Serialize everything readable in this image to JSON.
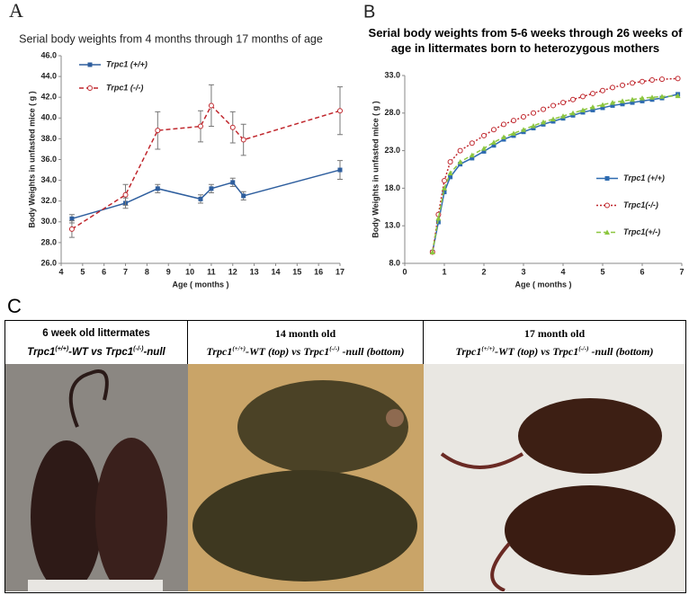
{
  "chart_data": [
    {
      "type": "line",
      "panel_label": "A",
      "title": "Serial body weights from 4 months through 17 months of age",
      "xlabel": "Age ( months )",
      "ylabel": "Body Weights in unfasted mice ( g )",
      "x": [
        4.5,
        7,
        8.5,
        10.5,
        11,
        12,
        12.5,
        17
      ],
      "series": [
        {
          "name": "Trpc1 (+/+)",
          "color": "#2e5e9e",
          "linestyle": "solid",
          "marker": "square",
          "values": [
            30.3,
            31.8,
            33.2,
            32.2,
            33.2,
            33.8,
            32.5,
            35.0
          ],
          "errors": [
            0.4,
            0.5,
            0.4,
            0.4,
            0.4,
            0.4,
            0.4,
            0.9
          ]
        },
        {
          "name": "Trpc1 (-/-)",
          "color": "#c0272d",
          "linestyle": "dashed",
          "marker": "circle",
          "values": [
            29.3,
            32.6,
            38.8,
            39.2,
            41.2,
            39.1,
            37.9,
            40.7
          ],
          "errors": [
            0.8,
            1.0,
            1.8,
            1.5,
            2.0,
            1.5,
            1.5,
            2.3
          ]
        }
      ],
      "xlim": [
        4,
        17
      ],
      "xticks": [
        4,
        5,
        6,
        7,
        8,
        9,
        10,
        11,
        12,
        13,
        14,
        15,
        16,
        17
      ],
      "ylim": [
        26,
        46
      ],
      "yticks": [
        {
          "value": 26,
          "label": "26.0"
        },
        {
          "value": 28,
          "label": "28.0"
        },
        {
          "value": 30,
          "label": "30.0"
        },
        {
          "value": 32,
          "label": "32.0"
        },
        {
          "value": 34,
          "label": "34.0"
        },
        {
          "value": 36,
          "label": "36.0"
        },
        {
          "value": 38,
          "label": "38.0"
        },
        {
          "value": 40,
          "label": "40.0"
        },
        {
          "value": 42,
          "label": "42.0"
        },
        {
          "value": 44,
          "label": "44.0"
        },
        {
          "value": 46,
          "label": "46.0"
        }
      ],
      "grid": false,
      "legend": "upper left"
    },
    {
      "type": "line",
      "panel_label": "B",
      "title": "Serial body weights from 5-6 weeks through 26 weeks of age in littermates born to heterozygous mothers",
      "xlabel": "Age ( months )",
      "ylabel": "Body Weights in unfasted mice ( g )",
      "x": [
        0.7,
        0.85,
        1.0,
        1.15,
        1.4,
        1.7,
        2.0,
        2.25,
        2.5,
        2.75,
        3.0,
        3.25,
        3.5,
        3.75,
        4.0,
        4.25,
        4.5,
        4.75,
        5.0,
        5.25,
        5.5,
        5.75,
        6.0,
        6.25,
        6.5,
        6.9
      ],
      "series": [
        {
          "name": "Trpc1 (+/+)",
          "color": "#2e6bb0",
          "linestyle": "solid",
          "marker": "square",
          "values": [
            9.5,
            13.5,
            17.5,
            19.5,
            21.2,
            22.0,
            22.9,
            23.7,
            24.5,
            25.0,
            25.5,
            26.0,
            26.5,
            26.9,
            27.3,
            27.7,
            28.1,
            28.4,
            28.7,
            29.0,
            29.2,
            29.4,
            29.6,
            29.8,
            30.0,
            30.5
          ]
        },
        {
          "name": "Trpc1(-/-)",
          "color": "#c0272d",
          "linestyle": "dotted",
          "marker": "circle",
          "values": [
            9.5,
            14.5,
            19.0,
            21.5,
            23.0,
            24.0,
            25.0,
            25.8,
            26.5,
            27.0,
            27.5,
            28.0,
            28.5,
            29.0,
            29.4,
            29.8,
            30.2,
            30.6,
            31.0,
            31.4,
            31.7,
            32.0,
            32.2,
            32.4,
            32.5,
            32.6
          ]
        },
        {
          "name": "Trpc1(+/-)",
          "color": "#8cc63f",
          "linestyle": "dashed",
          "marker": "triangle",
          "values": [
            9.5,
            14.0,
            18.0,
            20.0,
            21.5,
            22.4,
            23.3,
            24.1,
            24.8,
            25.3,
            25.8,
            26.3,
            26.8,
            27.2,
            27.6,
            28.0,
            28.4,
            28.8,
            29.1,
            29.4,
            29.6,
            29.8,
            30.0,
            30.1,
            30.2,
            30.3
          ]
        }
      ],
      "xlim": [
        0,
        7
      ],
      "xticks": [
        0,
        1,
        2,
        3,
        4,
        5,
        6,
        7
      ],
      "ylim": [
        8,
        33
      ],
      "yticks": [
        {
          "value": 8,
          "label": "8.0"
        },
        {
          "value": 13,
          "label": "13.0"
        },
        {
          "value": 18,
          "label": "18.0"
        },
        {
          "value": 23,
          "label": "23.0"
        },
        {
          "value": 28,
          "label": "28.0"
        },
        {
          "value": 33,
          "label": "33.0"
        }
      ],
      "grid": false,
      "legend": "center right"
    }
  ],
  "panel_c": {
    "label": "C",
    "columns": [
      {
        "heading": "6 week old littermates",
        "subheading": [
          "Trpc1",
          "(+/+)",
          "-WT vs ",
          "Trpc1",
          "(-/-)",
          "-null"
        ]
      },
      {
        "heading": "14 month old",
        "subheading": [
          "Trpc1",
          "(+/+)",
          "-WT (top) vs ",
          "Trpc1",
          "(-/-)",
          " -null (bottom)"
        ]
      },
      {
        "heading": "17 month old",
        "subheading": [
          "Trpc1",
          "(+/+)",
          "-WT (top) vs ",
          "Trpc1",
          "(-/-)",
          " -null (bottom)"
        ]
      }
    ]
  }
}
